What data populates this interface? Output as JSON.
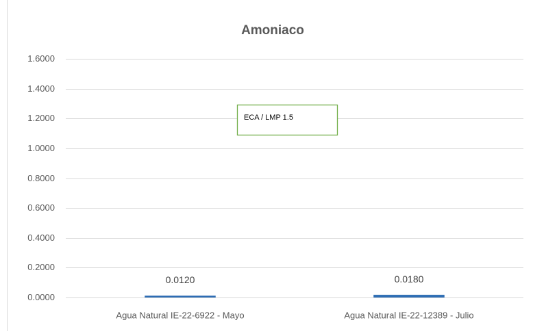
{
  "chart_data": {
    "type": "bar",
    "title": "Amoniaco",
    "categories": [
      "Agua Natural IE-22-6922 - Mayo",
      "Agua Natural IE-22-12389 - Julio"
    ],
    "values": [
      0.012,
      0.018
    ],
    "value_labels": [
      "0.0120",
      "0.0180"
    ],
    "color": "#2e6db4",
    "ylim": [
      0,
      1.6
    ],
    "yticks": [
      {
        "value": 0,
        "label": "0.0000"
      },
      {
        "value": 0.2,
        "label": "0.2000"
      },
      {
        "value": 0.4,
        "label": "0.4000"
      },
      {
        "value": 0.6,
        "label": "0.6000"
      },
      {
        "value": 0.8,
        "label": "0.8000"
      },
      {
        "value": 1.0,
        "label": "1.0000"
      },
      {
        "value": 1.2,
        "label": "1.2000"
      },
      {
        "value": 1.4,
        "label": "1.4000"
      },
      {
        "value": 1.6,
        "label": "1.6000"
      }
    ],
    "grid": true,
    "annotation": "ECA / LMP 1.5"
  }
}
